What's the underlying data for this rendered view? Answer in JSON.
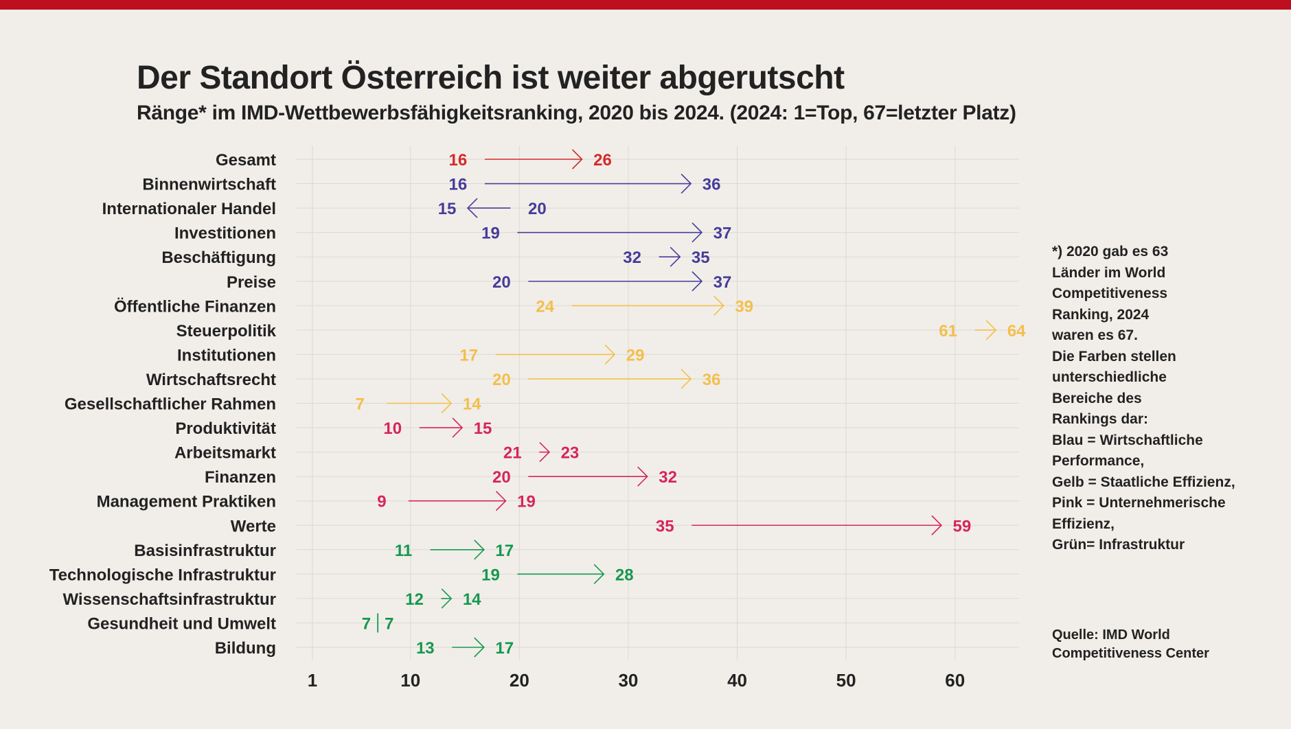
{
  "title": "Der Standort Österreich ist weiter abgerutscht",
  "subtitle": "Ränge* im IMD-Wettbewerbsfähigkeitsranking, 2020 bis 2024. (2024: 1=Top, 67=letzter Platz)",
  "footnote_lines": [
    "*) 2020 gab es 63",
    "Länder im World",
    "Competitiveness",
    "Ranking, 2024",
    "waren es 67.",
    "Die Farben stellen",
    "unterschiedliche",
    "Bereiche des",
    "Rankings dar:",
    "Blau = Wirtschaftliche",
    "Performance,",
    "Gelb = Staatliche Effizienz,",
    "Pink = Unternehmerische",
    "Effizienz,",
    "Grün= Infrastruktur"
  ],
  "source_lines": [
    "Quelle: IMD World",
    "Competitiveness Center"
  ],
  "colors": {
    "background": "#f1eee9",
    "top_bar": "#bd0f1f",
    "gesamt": "#d42a2a",
    "blau": "#463c9a",
    "gelb": "#f3bf4b",
    "pink": "#d6245e",
    "gruen": "#16984f",
    "gridline": "#dcd8d2",
    "text": "#222222"
  },
  "chart_data": {
    "type": "arrow-dumbbell",
    "title": "Der Standort Österreich ist weiter abgerutscht",
    "xlabel": "",
    "ylabel": "",
    "xlim": [
      1,
      65
    ],
    "x_ticks": [
      1,
      10,
      20,
      30,
      40,
      50,
      60
    ],
    "grid": true,
    "series_names": [
      "2020",
      "2024"
    ],
    "categories": [
      {
        "label": "Gesamt",
        "from": 16,
        "to": 26,
        "group": "gesamt"
      },
      {
        "label": "Binnenwirtschaft",
        "from": 16,
        "to": 36,
        "group": "blau"
      },
      {
        "label": "Internationaler Handel",
        "from": 20,
        "to": 15,
        "group": "blau"
      },
      {
        "label": "Investitionen",
        "from": 19,
        "to": 37,
        "group": "blau"
      },
      {
        "label": "Beschäftigung",
        "from": 32,
        "to": 35,
        "group": "blau"
      },
      {
        "label": "Preise",
        "from": 20,
        "to": 37,
        "group": "blau"
      },
      {
        "label": "Öffentliche Finanzen",
        "from": 24,
        "to": 39,
        "group": "gelb"
      },
      {
        "label": "Steuerpolitik",
        "from": 61,
        "to": 64,
        "group": "gelb"
      },
      {
        "label": "Institutionen",
        "from": 17,
        "to": 29,
        "group": "gelb"
      },
      {
        "label": "Wirtschaftsrecht",
        "from": 20,
        "to": 36,
        "group": "gelb"
      },
      {
        "label": "Gesellschaftlicher Rahmen",
        "from": 7,
        "to": 14,
        "group": "gelb"
      },
      {
        "label": "Produktivität",
        "from": 10,
        "to": 15,
        "group": "pink"
      },
      {
        "label": "Arbeitsmarkt",
        "from": 21,
        "to": 23,
        "group": "pink"
      },
      {
        "label": "Finanzen",
        "from": 20,
        "to": 32,
        "group": "pink"
      },
      {
        "label": "Management Praktiken",
        "from": 9,
        "to": 19,
        "group": "pink"
      },
      {
        "label": "Werte",
        "from": 35,
        "to": 59,
        "group": "pink"
      },
      {
        "label": "Basisinfrastruktur",
        "from": 11,
        "to": 17,
        "group": "gruen"
      },
      {
        "label": "Technologische Infrastruktur",
        "from": 19,
        "to": 28,
        "group": "gruen"
      },
      {
        "label": "Wissenschaftsinfrastruktur",
        "from": 12,
        "to": 14,
        "group": "gruen"
      },
      {
        "label": "Gesundheit und Umwelt",
        "from": 7,
        "to": 7,
        "group": "gruen"
      },
      {
        "label": "Bildung",
        "from": 13,
        "to": 17,
        "group": "gruen"
      }
    ]
  }
}
